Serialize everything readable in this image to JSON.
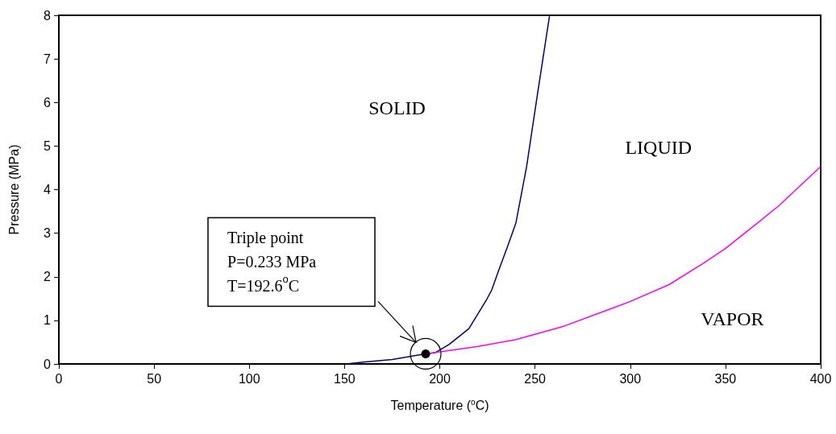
{
  "chart_data": {
    "type": "line",
    "xlabel": "Temperature ($^{o}$C)",
    "ylabel": "Pressure (MPa)",
    "xlim": [
      0,
      400
    ],
    "xticks": [
      0,
      50,
      100,
      150,
      200,
      250,
      300,
      350,
      400
    ],
    "ylim": [
      0,
      8
    ],
    "yticks": [
      0,
      1,
      2,
      3,
      4,
      5,
      6,
      7,
      8
    ],
    "grid": false,
    "marker": "none",
    "line_style": "solid",
    "series": [
      {
        "color": "#000080",
        "x": [
          151,
          159.6,
          175,
          192.6,
          197.7,
          205,
          215.3,
          224.4,
          227.3,
          230.8,
          235.8,
          240,
          245.6,
          251.3,
          257.6
        ],
        "values": [
          0,
          0.04,
          0.1,
          0.233,
          0.26,
          0.45,
          0.81,
          1.46,
          1.7,
          2.13,
          2.72,
          3.24,
          4.53,
          6.19,
          7.98
        ]
      },
      {
        "color": "#ff00ff",
        "x": [
          192.6,
          220,
          240,
          265.4,
          299.3,
          320.4,
          338.8,
          350,
          367,
          378.3,
          400
        ],
        "values": [
          0.233,
          0.4,
          0.56,
          0.87,
          1.42,
          1.82,
          2.32,
          2.65,
          3.24,
          3.64,
          4.53
        ]
      },
      {
        "type": "scatter",
        "marker": "circle",
        "color": "#000000",
        "x": [
          192.6
        ],
        "values": [
          0.233
        ]
      }
    ],
    "annotations": [
      "SOLID",
      "LIQUID",
      "VAPOR",
      "Triple point\nP=0.233 MPa\nT=192.6$^{o}$C"
    ]
  }
}
